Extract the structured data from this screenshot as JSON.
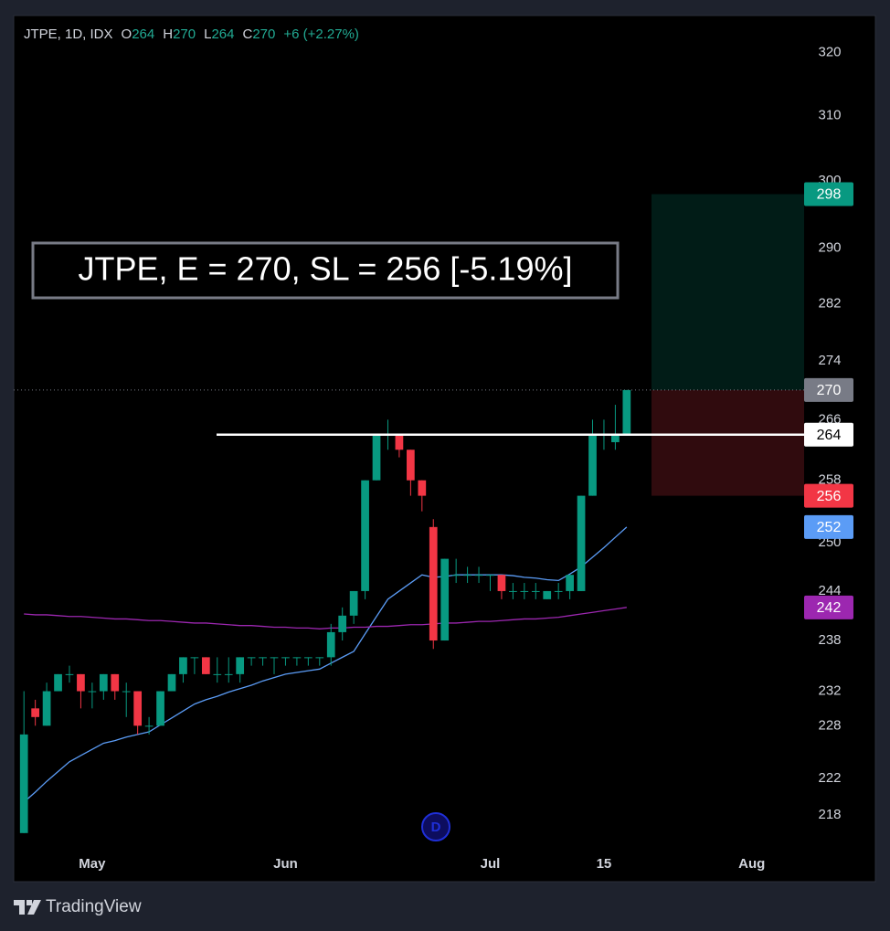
{
  "chart_data": {
    "type": "candlestick",
    "header": {
      "symbol": "JTPE, 1D, IDX",
      "fields": [
        {
          "label": "O",
          "value": 264
        },
        {
          "label": "H",
          "value": 270
        },
        {
          "label": "L",
          "value": 264
        },
        {
          "label": "C",
          "value": 270
        }
      ],
      "change": "+6 (+2.27%)"
    },
    "annotation": "JTPE, E = 270, SL = 256 [-5.19%]",
    "event_marker": "D",
    "brand": "TradingView",
    "up_color": "#089981",
    "down_color": "#f23645",
    "x": [
      0,
      1,
      2,
      3,
      4,
      5,
      6,
      7,
      8,
      9,
      10,
      11,
      12,
      13,
      14,
      15,
      16,
      17,
      18,
      19,
      20,
      21,
      22,
      23,
      24,
      25,
      26,
      27,
      28,
      29,
      30,
      31,
      32,
      33,
      34,
      35,
      36,
      37,
      38,
      39,
      40,
      41,
      42,
      43,
      44,
      45,
      46,
      47,
      48,
      49,
      50,
      51,
      52,
      53
    ],
    "open": [
      216,
      230,
      228,
      232,
      234,
      234,
      232,
      232,
      234,
      232,
      232,
      228,
      228,
      232,
      234,
      236,
      236,
      234,
      234,
      234,
      236,
      236,
      236,
      236,
      236,
      236,
      236,
      236,
      239,
      241,
      244,
      258,
      264,
      264,
      262,
      258,
      252,
      238,
      246,
      246,
      246,
      246,
      246,
      244,
      244,
      244,
      243,
      244,
      244,
      244,
      256,
      264,
      263,
      264
    ],
    "high": [
      232,
      231,
      233,
      234,
      235,
      234,
      233,
      234,
      234,
      233,
      232,
      229,
      232,
      234,
      236,
      236,
      236,
      236,
      236,
      236,
      236,
      236,
      236,
      236,
      236,
      236,
      236,
      240,
      242,
      244,
      258,
      264,
      266,
      264,
      262,
      258,
      253,
      248,
      248,
      247,
      247,
      246,
      246,
      245,
      245,
      245,
      244,
      245,
      246,
      256,
      266,
      266,
      268,
      270
    ],
    "low": [
      216,
      228,
      228,
      232,
      233,
      230,
      230,
      231,
      231,
      229,
      227,
      227,
      228,
      232,
      233,
      234,
      234,
      233,
      233,
      233,
      235,
      235,
      234,
      235,
      235,
      235,
      235,
      235,
      238,
      240,
      243,
      258,
      262,
      261,
      256,
      254,
      237,
      238,
      245,
      245,
      245,
      244,
      243,
      243,
      243,
      243,
      243,
      243,
      243,
      244,
      256,
      262,
      262,
      264
    ],
    "close": [
      227,
      229,
      232,
      234,
      234,
      232,
      232,
      234,
      232,
      232,
      228,
      228,
      232,
      234,
      236,
      236,
      234,
      234,
      234,
      236,
      236,
      236,
      236,
      236,
      236,
      236,
      236,
      239,
      241,
      244,
      258,
      264,
      264,
      262,
      258,
      256,
      238,
      248,
      246,
      246,
      246,
      246,
      244,
      244,
      244,
      244,
      244,
      244,
      246,
      256,
      264,
      264,
      264,
      270
    ],
    "moving_averages": [
      {
        "color": "#5b9cf6",
        "values": [
          219.4,
          220.5,
          221.7,
          222.8,
          223.9,
          224.6,
          225.3,
          226,
          226.3,
          226.7,
          227,
          227.3,
          228.1,
          228.9,
          229.7,
          230.5,
          231,
          231.4,
          231.9,
          232.3,
          232.7,
          233.2,
          233.6,
          234,
          234.2,
          234.4,
          234.6,
          235.3,
          236,
          236.7,
          238.8,
          240.9,
          243,
          244,
          245,
          246,
          245.7,
          245.8,
          246,
          246,
          246,
          246,
          246,
          245.9,
          245.7,
          245.6,
          245.4,
          245.3,
          246.1,
          247,
          248.2,
          249.4,
          250.7,
          252
        ]
      },
      {
        "color": "#9c27b0",
        "values": [
          241.2,
          241.1,
          241.1,
          241.0,
          240.9,
          240.9,
          240.8,
          240.7,
          240.6,
          240.6,
          240.5,
          240.4,
          240.4,
          240.3,
          240.2,
          240.1,
          240.1,
          240,
          239.9,
          239.8,
          239.8,
          239.7,
          239.6,
          239.6,
          239.5,
          239.5,
          239.4,
          239.5,
          239.5,
          239.6,
          239.6,
          239.7,
          239.7,
          239.8,
          239.9,
          239.9,
          240,
          240.1,
          240.1,
          240.2,
          240.3,
          240.3,
          240.4,
          240.5,
          240.6,
          240.6,
          240.7,
          240.8,
          241,
          241.2,
          241.4,
          241.6,
          241.8,
          242
        ]
      }
    ],
    "position": {
      "target": 298,
      "entry": 270,
      "stop": 256,
      "profit_color": "#089981",
      "loss_color": "#f23645",
      "entry_color": "#787b86"
    },
    "horizontal_line": {
      "value": 264,
      "color": "#ffffff"
    },
    "y_scale": "log",
    "grid": false,
    "xlim": [
      -0.9,
      68.6
    ],
    "xticks": [
      {
        "value": 6,
        "label": "May"
      },
      {
        "value": 23,
        "label": "Jun"
      },
      {
        "value": 41,
        "label": "Jul"
      },
      {
        "value": 51,
        "label": "15"
      },
      {
        "value": 64,
        "label": "Aug"
      }
    ],
    "ylim": [
      214.2,
      325.9
    ],
    "yticks": [
      320,
      310,
      300,
      290,
      282,
      274,
      266,
      258,
      250,
      244,
      238,
      232,
      228,
      222,
      218
    ]
  }
}
